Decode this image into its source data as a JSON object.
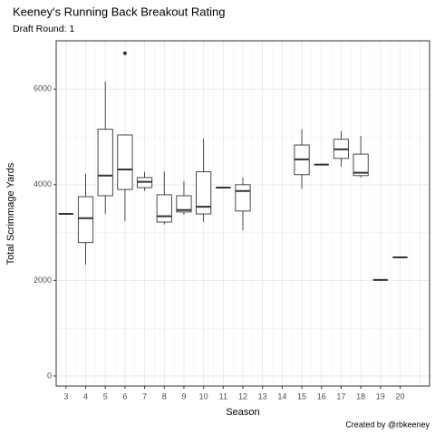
{
  "chart_data": {
    "type": "box",
    "title": "Keeney's Running Back Breakout Rating",
    "subtitle": "Draft Round: 1",
    "caption": "Created by @rbkeeney",
    "x_label": "Season",
    "y_label": "Total Scrimmage Yards",
    "categories": [
      "3",
      "4",
      "5",
      "6",
      "7",
      "8",
      "9",
      "10",
      "11",
      "12",
      "13",
      "14",
      "15",
      "16",
      "17",
      "18",
      "19",
      "20",
      null
    ],
    "min": [
      3390,
      2330,
      3390,
      3240,
      3870,
      3170,
      3370,
      3220,
      3940,
      3050,
      null,
      null,
      3920,
      4420,
      4380,
      4150,
      2010,
      2480,
      null
    ],
    "q1": [
      3390,
      2790,
      3770,
      3900,
      3940,
      3220,
      3430,
      3390,
      3940,
      3450,
      null,
      null,
      4210,
      4420,
      4550,
      4190,
      2010,
      2480,
      null
    ],
    "median": [
      3390,
      3300,
      4190,
      4320,
      4060,
      3340,
      3470,
      3540,
      3940,
      3870,
      null,
      null,
      4530,
      4420,
      4740,
      4250,
      2010,
      2480,
      null
    ],
    "q3": [
      3390,
      3750,
      5160,
      5040,
      4150,
      3790,
      3770,
      4270,
      3940,
      4000,
      null,
      null,
      4830,
      4420,
      4950,
      4640,
      2010,
      2480,
      null
    ],
    "max": [
      3390,
      4230,
      6160,
      5040,
      4270,
      4280,
      4080,
      4970,
      3940,
      4150,
      null,
      null,
      5160,
      4420,
      5120,
      5020,
      2010,
      2480,
      null
    ],
    "outliers": [
      [],
      [],
      [],
      [
        6750
      ],
      [],
      [],
      [],
      [],
      [],
      [],
      [],
      [],
      [],
      [],
      [],
      [],
      [],
      [],
      []
    ],
    "color": "#333333",
    "ylim": [
      -210,
      7010
    ],
    "yticks": [
      0,
      2000,
      4000,
      6000
    ],
    "y_minor_ticks": [
      1000,
      3000,
      5000,
      7000
    ],
    "grid": true
  }
}
